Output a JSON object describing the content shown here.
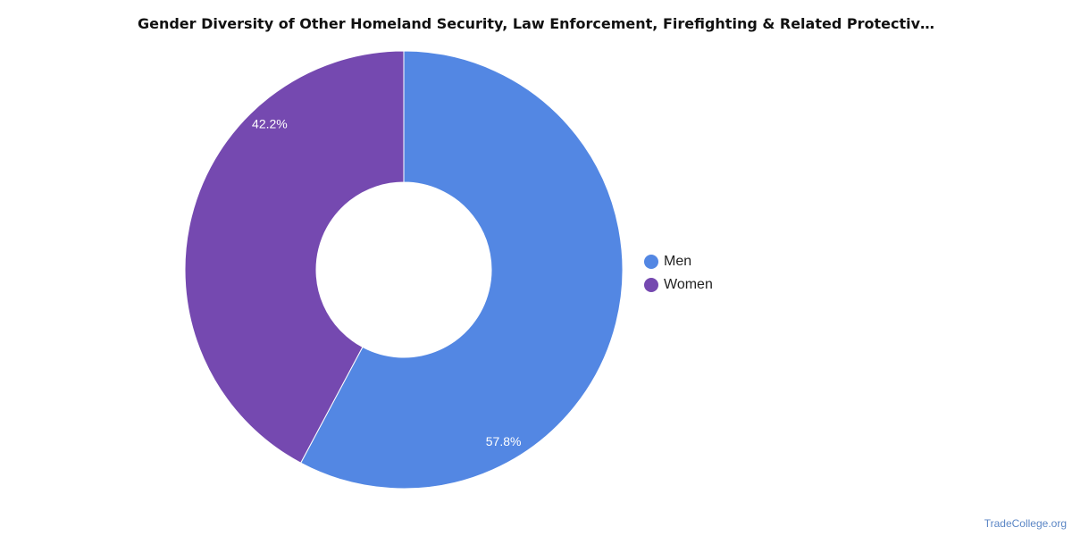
{
  "chart_data": {
    "type": "pie",
    "variant": "donut",
    "title": "Gender Diversity of Other Homeland Security, Law Enforcement, Firefighting & Related Protectiv…",
    "categories": [
      "Men",
      "Women"
    ],
    "values": [
      57.8,
      42.2
    ],
    "labels": [
      "57.8%",
      "42.2%"
    ],
    "colors": [
      "#5387e3",
      "#7549b0"
    ],
    "legend_position": "right"
  },
  "credit": "TradeCollege.org"
}
